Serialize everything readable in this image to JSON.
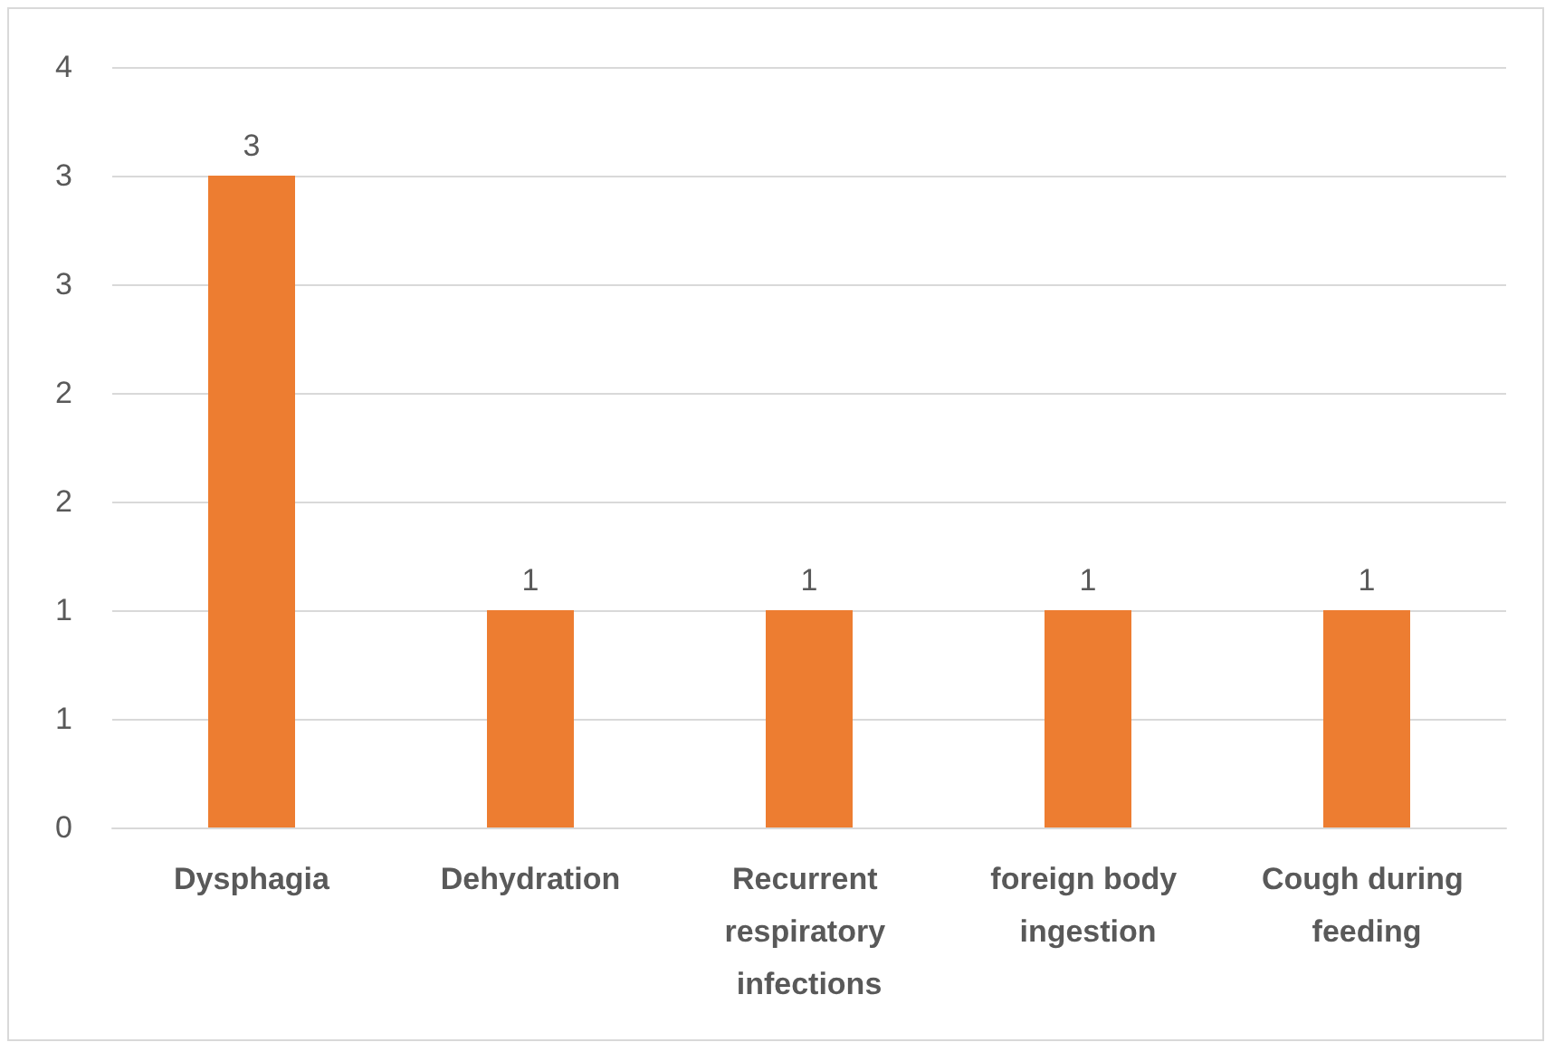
{
  "chart_data": {
    "type": "bar",
    "categories": [
      "Dysphagia",
      "Dehydration",
      "Recurrent respiratory infections",
      "foreign body ingestion",
      "Cough during feeding"
    ],
    "values": [
      3,
      1,
      1,
      1,
      1
    ],
    "color": "#ed7d31",
    "ylim": [
      0,
      3.5
    ],
    "yticks": [
      0,
      {
        "value": 0.5,
        "label": "1"
      },
      1,
      {
        "value": 1.5,
        "label": "2"
      },
      2,
      {
        "value": 2.5,
        "label": "3"
      },
      3,
      {
        "value": 3.5,
        "label": "4"
      }
    ],
    "grid": "y",
    "data_labels": true
  }
}
